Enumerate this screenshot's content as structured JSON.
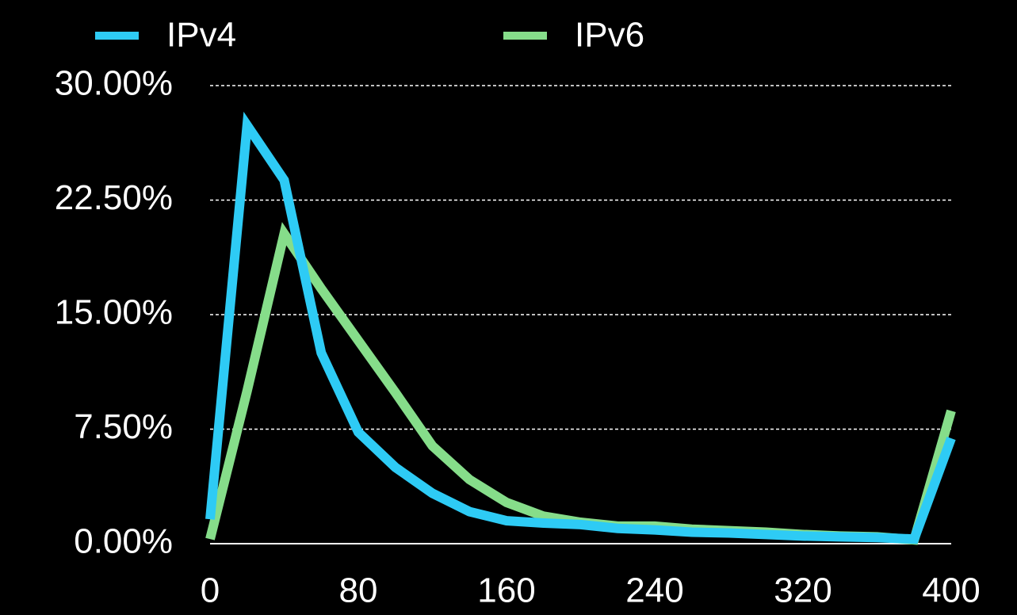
{
  "chart_data": {
    "type": "line",
    "x": [
      0,
      20,
      40,
      60,
      80,
      100,
      120,
      140,
      160,
      180,
      200,
      220,
      240,
      260,
      280,
      300,
      320,
      340,
      360,
      380,
      400
    ],
    "series": [
      {
        "name": "IPv4",
        "color": "#2ecbf5",
        "values": [
          1.6,
          27.4,
          23.8,
          12.5,
          7.3,
          5.0,
          3.3,
          2.1,
          1.5,
          1.35,
          1.25,
          1.0,
          0.9,
          0.75,
          0.7,
          0.6,
          0.5,
          0.45,
          0.4,
          0.3,
          6.9
        ]
      },
      {
        "name": "IPv6",
        "color": "#86dd8a",
        "values": [
          0.3,
          10.0,
          20.3,
          16.7,
          13.3,
          9.9,
          6.4,
          4.2,
          2.7,
          1.8,
          1.4,
          1.15,
          1.15,
          0.95,
          0.85,
          0.75,
          0.6,
          0.5,
          0.45,
          0.25,
          8.7
        ]
      }
    ],
    "xlim": [
      0,
      400
    ],
    "xticks": [
      0,
      80,
      160,
      240,
      320,
      400
    ],
    "ylim": [
      0,
      30
    ],
    "yticks": [
      {
        "value": 0,
        "label": "0.00%"
      },
      {
        "value": 7.5,
        "label": "7.50%"
      },
      {
        "value": 15,
        "label": "15.00%"
      },
      {
        "value": 22.5,
        "label": "22.50%"
      },
      {
        "value": 30,
        "label": "30.00%"
      }
    ],
    "grid": true,
    "legend": "top"
  }
}
